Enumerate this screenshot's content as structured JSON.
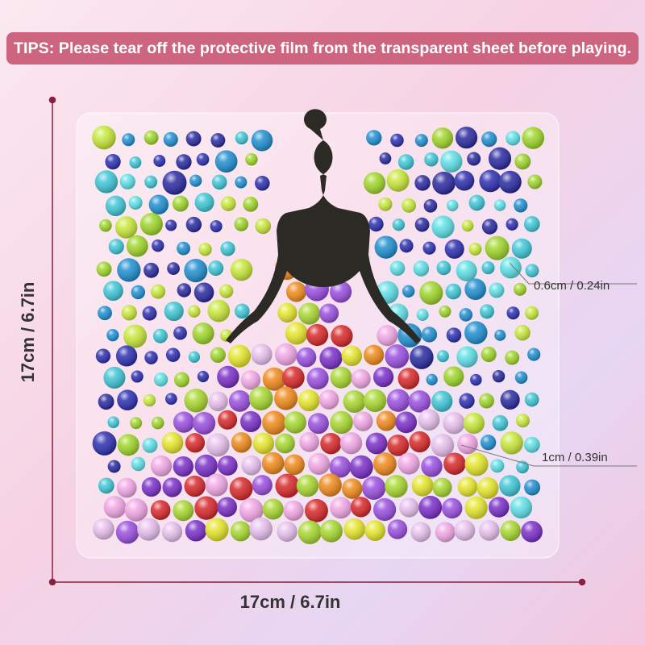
{
  "banner": {
    "text": "TIPS: Please tear off the protective film from the transparent sheet before playing."
  },
  "dimensions": {
    "height": "17cm / 6.7in",
    "width": "17cm / 6.7in"
  },
  "gem_sizes": [
    {
      "label": "0.6cm / 0.24in"
    },
    {
      "label": "1cm / 0.39in"
    }
  ]
}
